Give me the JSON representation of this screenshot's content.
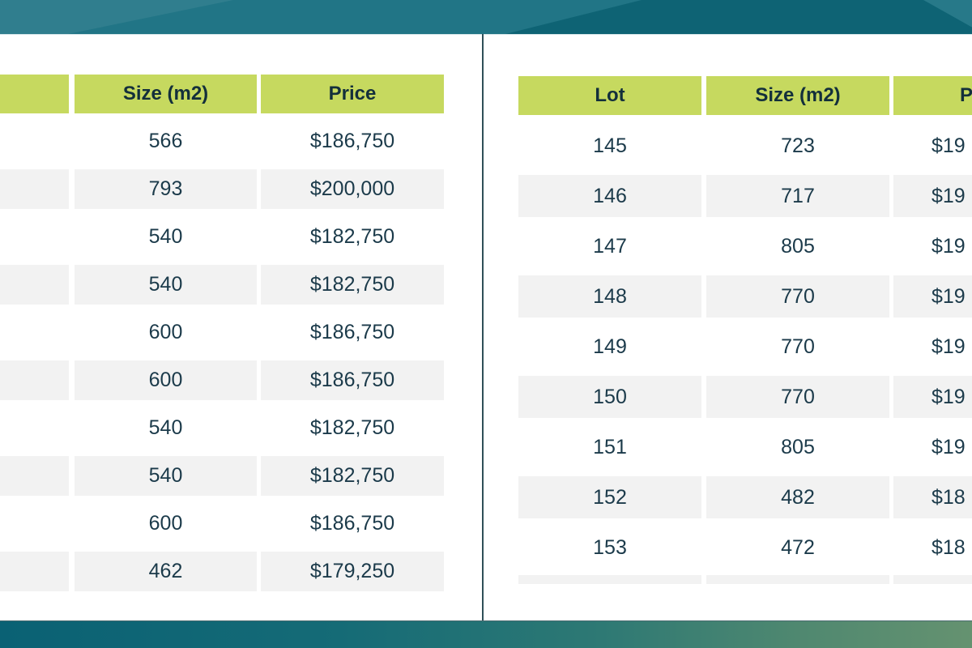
{
  "colors": {
    "top_band": "#0f6a7c",
    "bottom_band_start": "#0a6174",
    "bottom_band_end": "#659270",
    "header_green": "#c6d95f",
    "shaded_row_gray": "#f2f2f2",
    "text": "#1b3a4a",
    "divider": "#2f5058"
  },
  "left_table": {
    "columns": [
      "",
      "Size (m2)",
      "Price"
    ],
    "rows": [
      [
        "",
        "566",
        "$186,750"
      ],
      [
        "",
        "793",
        "$200,000"
      ],
      [
        "",
        "540",
        "$182,750"
      ],
      [
        "",
        "540",
        "$182,750"
      ],
      [
        "",
        "600",
        "$186,750"
      ],
      [
        "",
        "600",
        "$186,750"
      ],
      [
        "",
        "540",
        "$182,750"
      ],
      [
        "",
        "540",
        "$182,750"
      ],
      [
        "",
        "600",
        "$186,750"
      ],
      [
        "",
        "462",
        "$179,250"
      ]
    ]
  },
  "right_table": {
    "columns": [
      "Lot",
      "Size (m2)",
      "P"
    ],
    "rows": [
      [
        "145",
        "723",
        "$19"
      ],
      [
        "146",
        "717",
        "$19"
      ],
      [
        "147",
        "805",
        "$19"
      ],
      [
        "148",
        "770",
        "$19"
      ],
      [
        "149",
        "770",
        "$19"
      ],
      [
        "150",
        "770",
        "$19"
      ],
      [
        "151",
        "805",
        "$19"
      ],
      [
        "152",
        "482",
        "$18"
      ],
      [
        "153",
        "472",
        "$18"
      ]
    ],
    "has_partial_next_row": true
  }
}
